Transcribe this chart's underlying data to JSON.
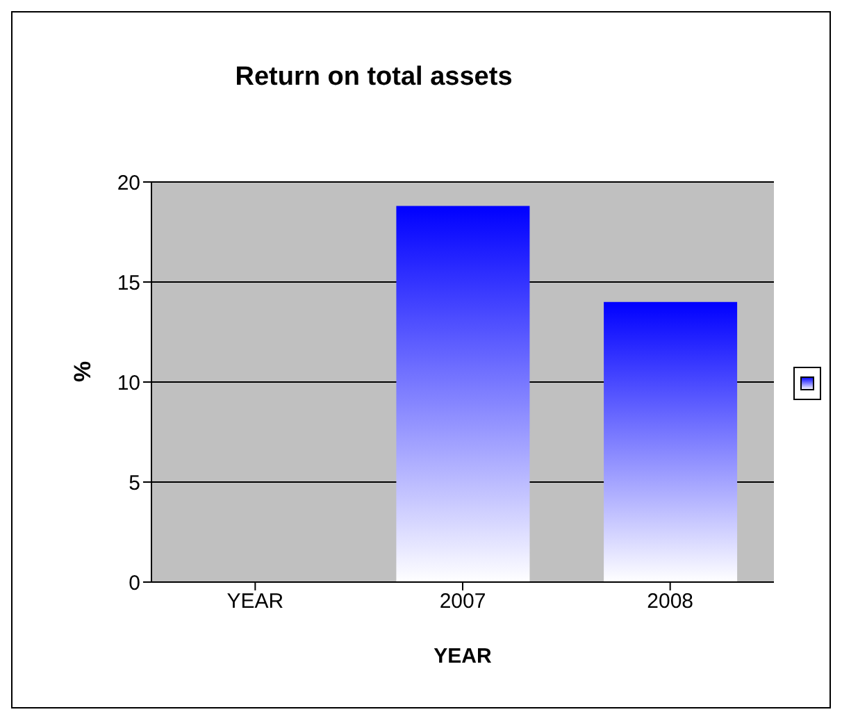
{
  "chart_data": {
    "type": "bar",
    "title": "Return on total assets",
    "xlabel": "YEAR",
    "ylabel": "%",
    "categories": [
      "YEAR",
      "2007",
      "2008"
    ],
    "series": [
      {
        "color": "#0000ff",
        "values": [
          null,
          18.8,
          14.0
        ]
      }
    ],
    "ylim": [
      0,
      20
    ],
    "yticks": [
      0,
      5,
      10,
      15,
      20
    ],
    "grid": "y"
  }
}
